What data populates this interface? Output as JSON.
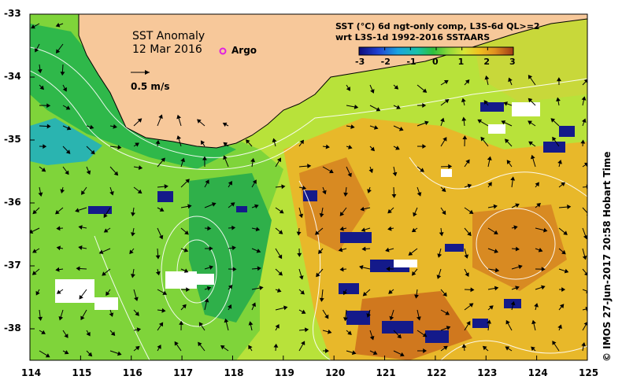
{
  "map": {
    "title": "SST Anomaly",
    "date": "12 Mar 2016",
    "argo_label": "Argo",
    "vector_scale_label": "0.5 m/s",
    "colorbar_title_line1": "SST (°C) 6d ngt-only comp, L3S-6d QL>=2",
    "colorbar_title_line2": "wrt L3S-1d 1992-2016 SSTAARS",
    "colorbar_ticks": [
      "-3",
      "-2",
      "-1",
      "0",
      "1",
      "2",
      "3"
    ],
    "credit": "© IMOS 27-Jun-2017 20:58 Hobart Time",
    "x_ticks": [
      "114",
      "115",
      "116",
      "117",
      "118",
      "119",
      "120",
      "121",
      "122",
      "123",
      "124",
      "125"
    ],
    "y_ticks": [
      "-33",
      "-34",
      "-35",
      "-36",
      "-37",
      "-38"
    ],
    "colors": {
      "land": "#f7c89a",
      "anomaly_scale": [
        "#0b0b7a",
        "#1f3fd0",
        "#1aa3e0",
        "#19c2a8",
        "#2dbf3c",
        "#8fd93a",
        "#d8e636",
        "#f0c020",
        "#e09020",
        "#c8601c",
        "#a03a16"
      ],
      "cloud": "#ffffff",
      "contour": "#ffffff",
      "vector": "#000000",
      "argo_marker": "#e020e0"
    }
  }
}
